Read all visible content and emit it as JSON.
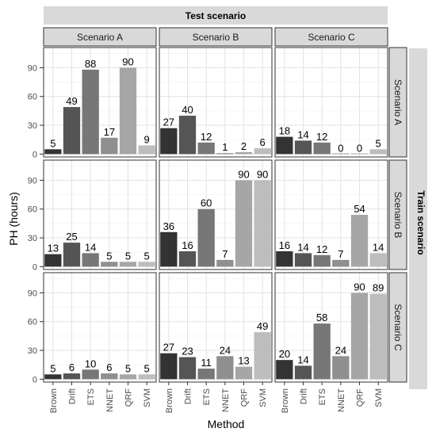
{
  "chart_data": {
    "type": "bar",
    "col_header": "Test scenario",
    "row_header": "Train scenario",
    "xlabel": "Method",
    "ylabel": "PH (hours)",
    "categories": [
      "Brown",
      "Drift",
      "ETS",
      "NNET",
      "QRF",
      "SVM"
    ],
    "columns": [
      "Scenario A",
      "Scenario B",
      "Scenario C"
    ],
    "rows": [
      "Scenario A",
      "Scenario B",
      "Scenario C"
    ],
    "yticks": [
      0,
      30,
      60,
      90
    ],
    "ylim": [
      -3,
      111
    ],
    "grid": true,
    "bar_colors": [
      "#333333",
      "#555555",
      "#777777",
      "#8f8f8f",
      "#a6a6a6",
      "#bdbdbd"
    ],
    "panels": [
      {
        "row": "Scenario A",
        "col": "Scenario A",
        "values": [
          5,
          49,
          88,
          17,
          90,
          9
        ]
      },
      {
        "row": "Scenario A",
        "col": "Scenario B",
        "values": [
          27,
          40,
          12,
          1,
          2,
          6
        ]
      },
      {
        "row": "Scenario A",
        "col": "Scenario C",
        "values": [
          18,
          14,
          12,
          0,
          0,
          5
        ]
      },
      {
        "row": "Scenario B",
        "col": "Scenario A",
        "values": [
          13,
          25,
          14,
          5,
          5,
          5
        ]
      },
      {
        "row": "Scenario B",
        "col": "Scenario B",
        "values": [
          36,
          16,
          60,
          7,
          90,
          90
        ]
      },
      {
        "row": "Scenario B",
        "col": "Scenario C",
        "values": [
          16,
          14,
          12,
          7,
          54,
          14
        ]
      },
      {
        "row": "Scenario C",
        "col": "Scenario A",
        "values": [
          5,
          6,
          10,
          6,
          5,
          5
        ]
      },
      {
        "row": "Scenario C",
        "col": "Scenario B",
        "values": [
          27,
          23,
          11,
          24,
          13,
          49
        ]
      },
      {
        "row": "Scenario C",
        "col": "Scenario C",
        "values": [
          20,
          14,
          58,
          24,
          90,
          89
        ]
      }
    ]
  }
}
